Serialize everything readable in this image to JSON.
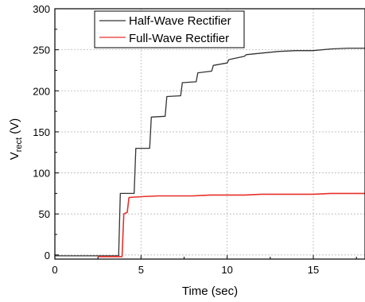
{
  "chart_data": {
    "type": "line",
    "xlabel": "Time (sec)",
    "ylabel": {
      "main": "V",
      "sub": "rect",
      "unit": " (V)"
    },
    "xlim": [
      0,
      18
    ],
    "ylim": [
      -5,
      300
    ],
    "xticks": [
      0,
      5,
      10,
      15
    ],
    "yticks": [
      0,
      50,
      100,
      150,
      200,
      250,
      300
    ],
    "grid": true,
    "legend_position": "top-left",
    "series": [
      {
        "name": "Half-Wave Rectifier",
        "color": "#333333",
        "points": [
          [
            0,
            -1
          ],
          [
            3.7,
            -1
          ],
          [
            3.8,
            75
          ],
          [
            4.6,
            75
          ],
          [
            4.7,
            130
          ],
          [
            5.5,
            130
          ],
          [
            5.6,
            168
          ],
          [
            6.4,
            169
          ],
          [
            6.5,
            193
          ],
          [
            7.3,
            194
          ],
          [
            7.4,
            210
          ],
          [
            8.2,
            211
          ],
          [
            8.3,
            222
          ],
          [
            9.1,
            224
          ],
          [
            9.2,
            231
          ],
          [
            10.0,
            234
          ],
          [
            10.1,
            238
          ],
          [
            11.0,
            242
          ],
          [
            11.1,
            244
          ],
          [
            12.0,
            246
          ],
          [
            13.0,
            248
          ],
          [
            14.0,
            249
          ],
          [
            15.0,
            249
          ],
          [
            16.0,
            251
          ],
          [
            17.0,
            252
          ],
          [
            18.0,
            252
          ]
        ]
      },
      {
        "name": "Full-Wave Rectifier",
        "color": "#e8302a",
        "points": [
          [
            2.5,
            -2
          ],
          [
            3.9,
            -2
          ],
          [
            4.0,
            50
          ],
          [
            4.2,
            52
          ],
          [
            4.3,
            70
          ],
          [
            5,
            71
          ],
          [
            6,
            72
          ],
          [
            7,
            72
          ],
          [
            8,
            72
          ],
          [
            9,
            73
          ],
          [
            10,
            73
          ],
          [
            11,
            73
          ],
          [
            12,
            74
          ],
          [
            13,
            74
          ],
          [
            14,
            74
          ],
          [
            15,
            74
          ],
          [
            16,
            75
          ],
          [
            17,
            75
          ],
          [
            18,
            75
          ]
        ]
      }
    ]
  }
}
